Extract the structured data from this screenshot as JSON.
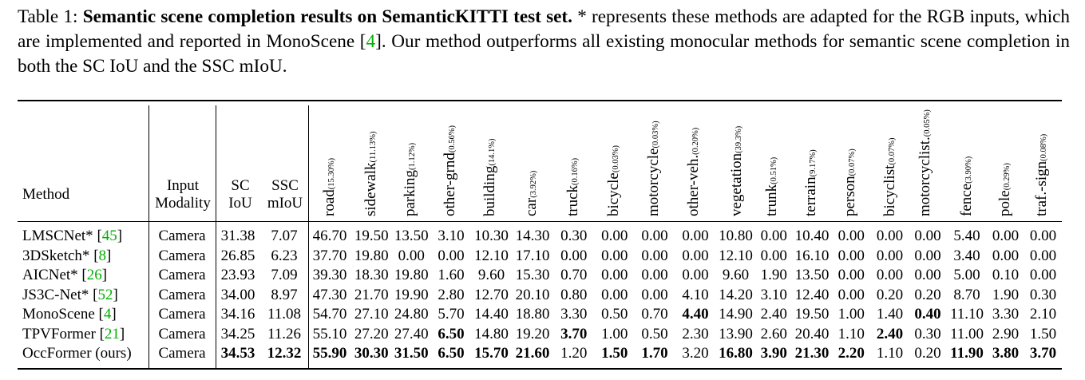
{
  "caption": {
    "label": "Table 1:",
    "title": "Semantic scene completion results on SemanticKITTI test set.",
    "text_before_ref": "* represents these methods are adapted for the RGB inputs, which are implemented and reported in MonoScene [",
    "ref": "4",
    "text_after_ref": "]. Our method outperforms all existing monocular methods for semantic scene completion in both the SC IoU and the SSC mIoU."
  },
  "header": {
    "method": "Method",
    "input_line1": "Input",
    "input_line2": "Modality",
    "sc_line1": "SC",
    "sc_line2": "IoU",
    "ssc_line1": "SSC",
    "ssc_line2": "mIoU",
    "classes": [
      {
        "name": "road",
        "pct": "(15.30%)"
      },
      {
        "name": "sidewalk",
        "pct": "(11.13%)"
      },
      {
        "name": "parking",
        "pct": "(1.12%)"
      },
      {
        "name": "other-grnd",
        "pct": "(0.56%)"
      },
      {
        "name": "building",
        "pct": "(14.1%)"
      },
      {
        "name": "car",
        "pct": "(3.92%)"
      },
      {
        "name": "truck",
        "pct": "(0.16%)"
      },
      {
        "name": "bicycle",
        "pct": "(0.03%)"
      },
      {
        "name": "motorcycle",
        "pct": "(0.03%)"
      },
      {
        "name": "other-veh.",
        "pct": "(0.20%)"
      },
      {
        "name": "vegetation",
        "pct": "(39.3%)"
      },
      {
        "name": "trunk",
        "pct": "(0.51%)"
      },
      {
        "name": "terrain",
        "pct": "(9.17%)"
      },
      {
        "name": "person",
        "pct": "(0.07%)"
      },
      {
        "name": "bicyclist",
        "pct": "(0.07%)"
      },
      {
        "name": "motorcyclist.",
        "pct": "(0.05%)"
      },
      {
        "name": "fence",
        "pct": "(3.90%)"
      },
      {
        "name": "pole",
        "pct": "(0.29%)"
      },
      {
        "name": "traf.-sign",
        "pct": "(0.08%)"
      }
    ]
  },
  "rows": [
    {
      "method": "LMSCNet*",
      "ref": "45",
      "modality": "Camera",
      "sc": "31.38",
      "ssc": "7.07",
      "values": [
        "46.70",
        "19.50",
        "13.50",
        "3.10",
        "10.30",
        "14.30",
        "0.30",
        "0.00",
        "0.00",
        "0.00",
        "10.80",
        "0.00",
        "10.40",
        "0.00",
        "0.00",
        "0.00",
        "5.40",
        "0.00",
        "0.00"
      ],
      "bold": []
    },
    {
      "method": "3DSketch*",
      "ref": "8",
      "modality": "Camera",
      "sc": "26.85",
      "ssc": "6.23",
      "values": [
        "37.70",
        "19.80",
        "0.00",
        "0.00",
        "12.10",
        "17.10",
        "0.00",
        "0.00",
        "0.00",
        "0.00",
        "12.10",
        "0.00",
        "16.10",
        "0.00",
        "0.00",
        "0.00",
        "3.40",
        "0.00",
        "0.00"
      ],
      "bold": []
    },
    {
      "method": "AICNet*",
      "ref": "26",
      "modality": "Camera",
      "sc": "23.93",
      "ssc": "7.09",
      "values": [
        "39.30",
        "18.30",
        "19.80",
        "1.60",
        "9.60",
        "15.30",
        "0.70",
        "0.00",
        "0.00",
        "0.00",
        "9.60",
        "1.90",
        "13.50",
        "0.00",
        "0.00",
        "0.00",
        "5.00",
        "0.10",
        "0.00"
      ],
      "bold": []
    },
    {
      "method": "JS3C-Net*",
      "ref": "52",
      "modality": "Camera",
      "sc": "34.00",
      "ssc": "8.97",
      "values": [
        "47.30",
        "21.70",
        "19.90",
        "2.80",
        "12.70",
        "20.10",
        "0.80",
        "0.00",
        "0.00",
        "4.10",
        "14.20",
        "3.10",
        "12.40",
        "0.00",
        "0.20",
        "0.20",
        "8.70",
        "1.90",
        "0.30"
      ],
      "bold": []
    },
    {
      "method": "MonoScene",
      "ref": "4",
      "modality": "Camera",
      "sc": "34.16",
      "ssc": "11.08",
      "values": [
        "54.70",
        "27.10",
        "24.80",
        "5.70",
        "14.40",
        "18.80",
        "3.30",
        "0.50",
        "0.70",
        "4.40",
        "14.90",
        "2.40",
        "19.50",
        "1.00",
        "1.40",
        "0.40",
        "11.10",
        "3.30",
        "2.10"
      ],
      "bold": [
        9,
        15
      ]
    },
    {
      "method": "TPVFormer",
      "ref": "21",
      "modality": "Camera",
      "sc": "34.25",
      "ssc": "11.26",
      "values": [
        "55.10",
        "27.20",
        "27.40",
        "6.50",
        "14.80",
        "19.20",
        "3.70",
        "1.00",
        "0.50",
        "2.30",
        "13.90",
        "2.60",
        "20.40",
        "1.10",
        "2.40",
        "0.30",
        "11.00",
        "2.90",
        "1.50"
      ],
      "bold": [
        3,
        6,
        14
      ]
    },
    {
      "method": "OccFormer (ours)",
      "ref": "",
      "modality": "Camera",
      "sc": "34.53",
      "ssc": "12.32",
      "values": [
        "55.90",
        "30.30",
        "31.50",
        "6.50",
        "15.70",
        "21.60",
        "1.20",
        "1.50",
        "1.70",
        "3.20",
        "16.80",
        "3.90",
        "21.30",
        "2.20",
        "1.10",
        "0.20",
        "11.90",
        "3.80",
        "3.70"
      ],
      "bold": [
        0,
        1,
        2,
        3,
        4,
        5,
        7,
        8,
        10,
        11,
        12,
        13,
        16,
        17,
        18
      ],
      "bold_sc": true,
      "bold_ssc": true
    }
  ]
}
